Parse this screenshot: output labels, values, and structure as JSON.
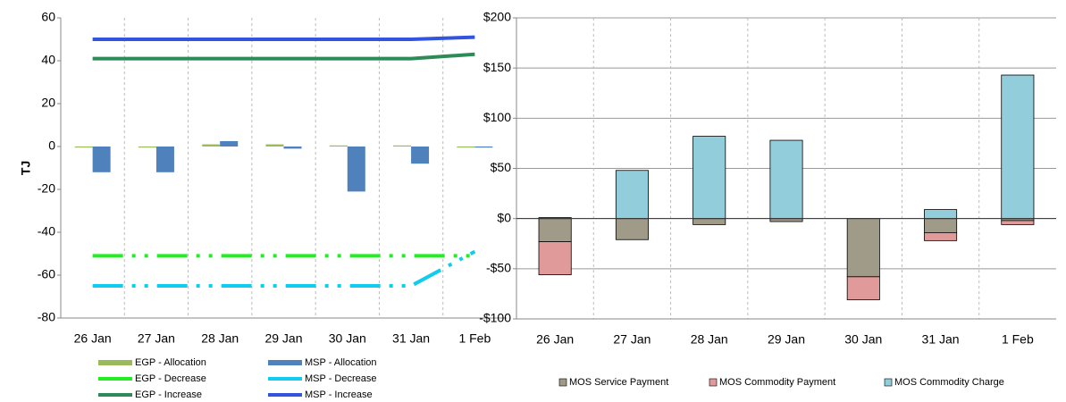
{
  "chart_data": [
    {
      "type": "combo",
      "y_label": "TJ",
      "categories": [
        "26 Jan",
        "27 Jan",
        "28 Jan",
        "29 Jan",
        "30 Jan",
        "31 Jan",
        "1 Feb"
      ],
      "ylim": [
        -80,
        60
      ],
      "yticks": [
        -80,
        -60,
        -40,
        -20,
        0,
        20,
        40,
        60
      ],
      "grid": "vertical",
      "series": [
        {
          "name": "EGP - Allocation",
          "mark": "bar",
          "color": "#9bbb59",
          "values": [
            -0.5,
            -0.5,
            1,
            1,
            0.5,
            0.5,
            -0.5
          ]
        },
        {
          "name": "MSP - Allocation",
          "mark": "bar",
          "color": "#4f81bd",
          "values": [
            -12,
            -12,
            2.5,
            -1,
            -21,
            -8,
            -0.5
          ]
        },
        {
          "name": "EGP - Decrease",
          "mark": "line",
          "dashed": true,
          "color": "#22ee22",
          "values": [
            -51,
            -51,
            -51,
            -51,
            -51,
            -51,
            -51
          ]
        },
        {
          "name": "MSP - Decrease",
          "mark": "line",
          "dashed": true,
          "color": "#11ccee",
          "values": [
            -65,
            -65,
            -65,
            -65,
            -65,
            -65,
            -49
          ]
        },
        {
          "name": "EGP - Increase",
          "mark": "line",
          "color": "#2e8b57",
          "values": [
            41,
            41,
            41,
            41,
            41,
            41,
            43
          ]
        },
        {
          "name": "MSP - Increase",
          "mark": "line",
          "color": "#3355dd",
          "values": [
            50,
            50,
            50,
            50,
            50,
            50,
            51
          ]
        }
      ]
    },
    {
      "type": "bar",
      "stacked": true,
      "categories": [
        "26 Jan",
        "27 Jan",
        "28 Jan",
        "29 Jan",
        "30 Jan",
        "31 Jan",
        "1 Feb"
      ],
      "ylim": [
        -100,
        200
      ],
      "yticks": [
        {
          "value": -100,
          "label": "-$100"
        },
        {
          "value": -50,
          "label": "-$50"
        },
        {
          "value": 0,
          "label": "$0"
        },
        {
          "value": 50,
          "label": "$50"
        },
        {
          "value": 100,
          "label": "$100"
        },
        {
          "value": 150,
          "label": "$150"
        },
        {
          "value": 200,
          "label": "$200"
        }
      ],
      "grid": "both",
      "series": [
        {
          "name": "MOS Service Payment",
          "color": "#a09a88",
          "values": [
            -23,
            -21,
            -6,
            -3,
            -58,
            -14,
            -2
          ]
        },
        {
          "name": "MOS Commodity Payment",
          "color": "#e09a9a",
          "values": [
            -33,
            0,
            0,
            0,
            -23,
            -8,
            -4
          ]
        },
        {
          "name": "MOS Commodity Charge",
          "color": "#92cddc",
          "values": [
            1,
            48,
            82,
            78,
            0,
            9,
            143
          ]
        }
      ]
    }
  ]
}
